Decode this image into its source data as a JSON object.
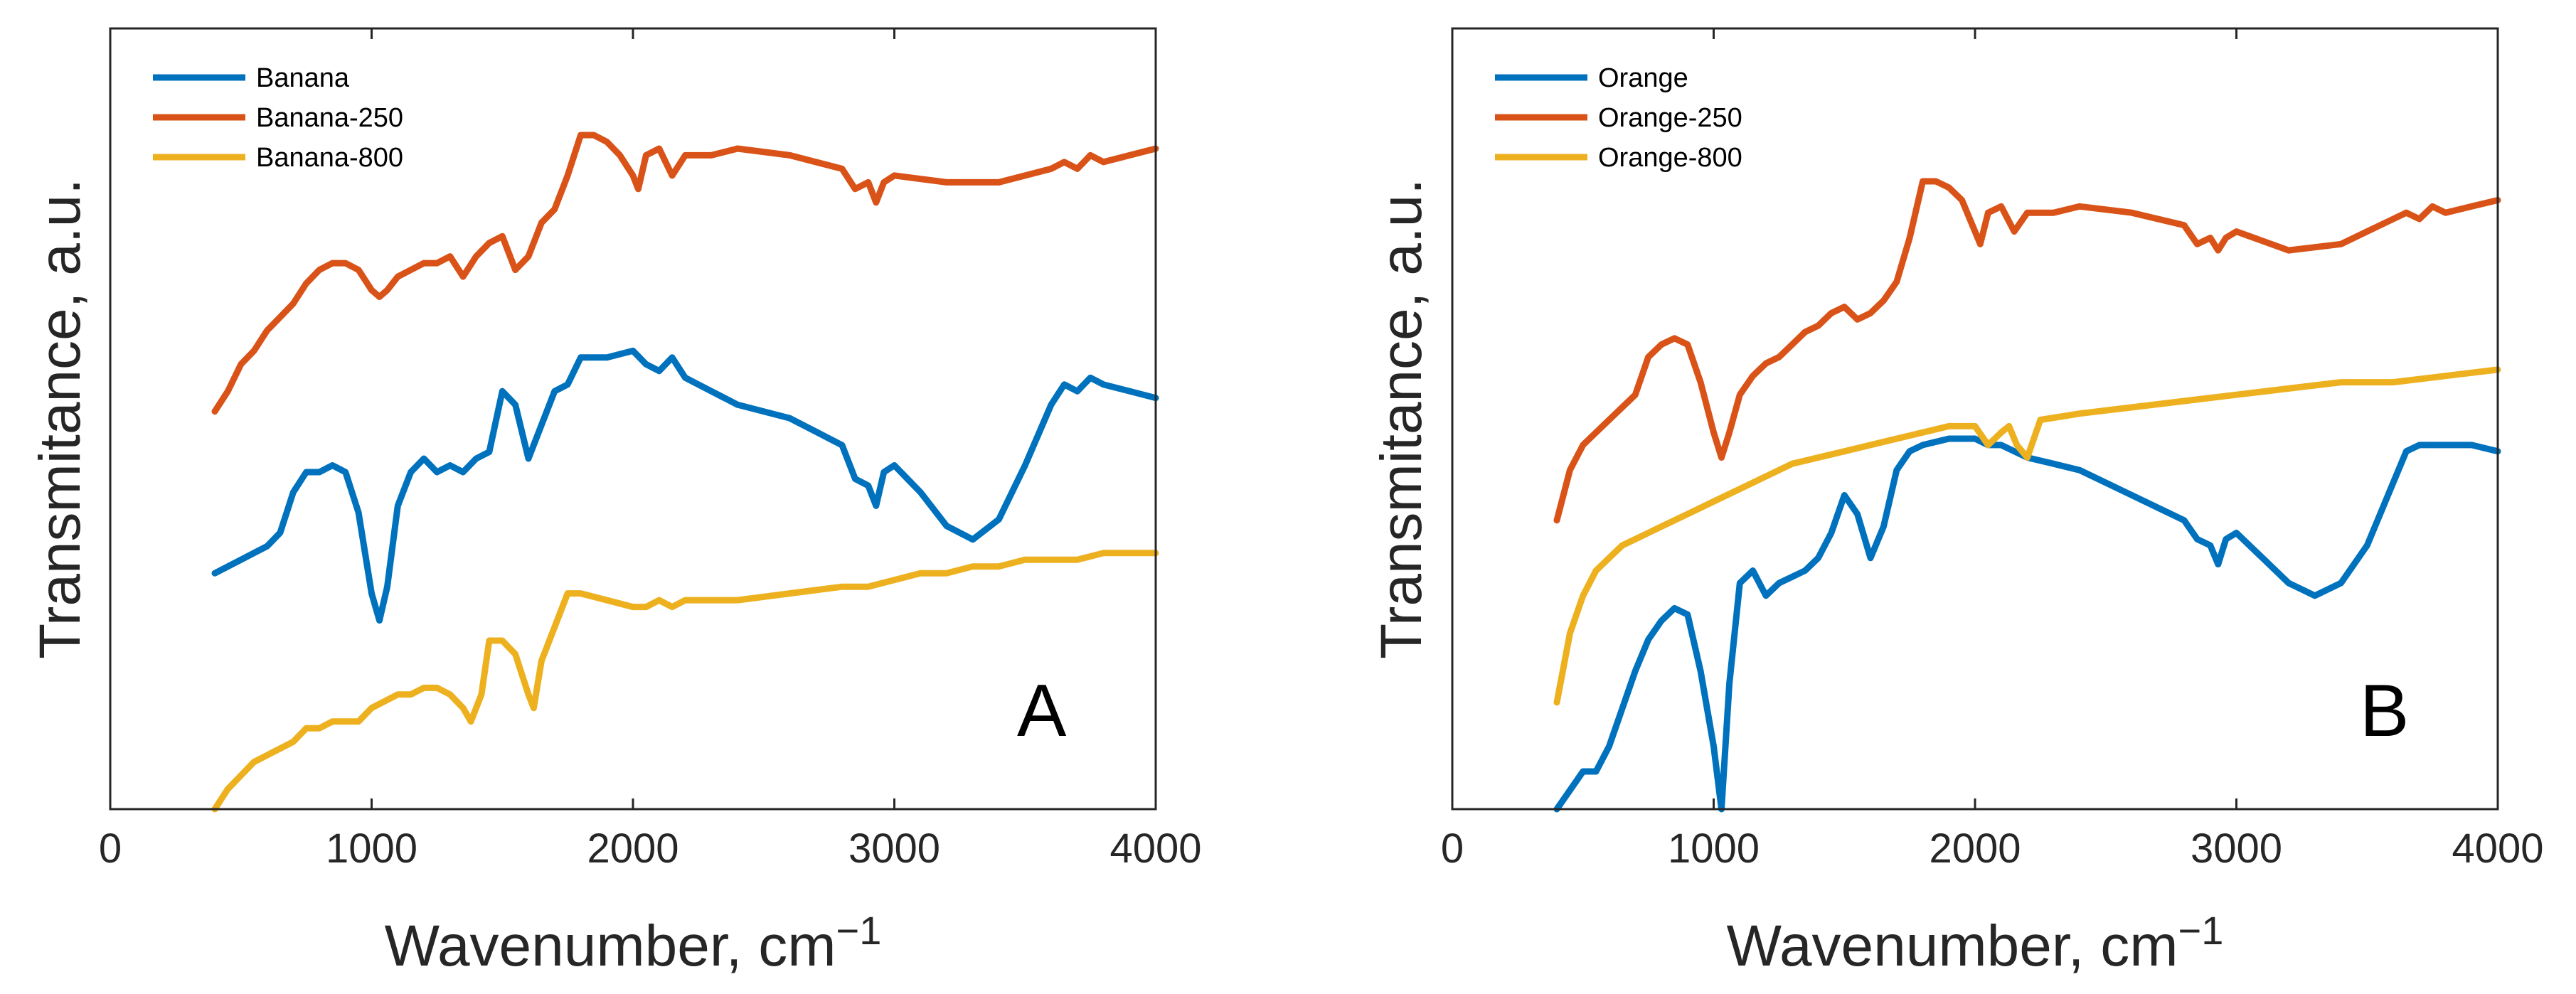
{
  "chart_data": [
    {
      "type": "line",
      "panel_letter": "A",
      "title": "",
      "xlabel": "Wavenumber, cm",
      "xlabel_superscript": "−1",
      "ylabel": "Transmitance, a.u.",
      "xlim": [
        0,
        4000
      ],
      "ylim": [
        0,
        100
      ],
      "xticks": [
        0,
        1000,
        2000,
        3000,
        4000
      ],
      "yticks": [],
      "grid": false,
      "legend_position": "top-left",
      "series": [
        {
          "name": "Banana",
          "color": "#0072BD",
          "x": [
            400,
            450,
            500,
            550,
            600,
            650,
            700,
            750,
            800,
            850,
            900,
            950,
            1000,
            1030,
            1060,
            1100,
            1150,
            1200,
            1250,
            1300,
            1350,
            1400,
            1450,
            1500,
            1550,
            1600,
            1650,
            1700,
            1750,
            1800,
            1900,
            2000,
            2050,
            2100,
            2150,
            2200,
            2300,
            2400,
            2600,
            2800,
            2850,
            2900,
            2930,
            2960,
            3000,
            3100,
            3200,
            3300,
            3400,
            3500,
            3600,
            3650,
            3700,
            3750,
            3800,
            3900,
            4000
          ],
          "y": [
            35,
            36,
            37,
            38,
            39,
            41,
            47,
            50,
            50,
            51,
            50,
            44,
            32,
            28,
            33,
            45,
            50,
            52,
            50,
            51,
            50,
            52,
            53,
            62,
            60,
            52,
            57,
            62,
            63,
            67,
            67,
            68,
            66,
            65,
            67,
            64,
            62,
            60,
            58,
            54,
            49,
            48,
            45,
            50,
            51,
            47,
            42,
            40,
            43,
            51,
            60,
            63,
            62,
            64,
            63,
            62,
            61
          ]
        },
        {
          "name": "Banana-250",
          "color": "#D95319",
          "x": [
            400,
            450,
            500,
            550,
            600,
            650,
            700,
            750,
            800,
            850,
            900,
            950,
            1000,
            1030,
            1060,
            1100,
            1150,
            1200,
            1250,
            1300,
            1350,
            1400,
            1450,
            1500,
            1550,
            1600,
            1650,
            1700,
            1750,
            1800,
            1850,
            1900,
            1950,
            2000,
            2020,
            2050,
            2100,
            2150,
            2200,
            2300,
            2400,
            2600,
            2800,
            2850,
            2900,
            2930,
            2960,
            3000,
            3200,
            3400,
            3500,
            3600,
            3650,
            3700,
            3750,
            3800,
            3900,
            4000
          ],
          "y": [
            59,
            62,
            66,
            68,
            71,
            73,
            75,
            78,
            80,
            81,
            81,
            80,
            77,
            76,
            77,
            79,
            80,
            81,
            81,
            82,
            79,
            82,
            84,
            85,
            80,
            82,
            87,
            89,
            94,
            100,
            100,
            99,
            97,
            94,
            92,
            97,
            98,
            94,
            97,
            97,
            98,
            97,
            95,
            92,
            93,
            90,
            93,
            94,
            93,
            93,
            94,
            95,
            96,
            95,
            97,
            96,
            97,
            98
          ]
        },
        {
          "name": "Banana-800",
          "color": "#EDB120",
          "x": [
            400,
            450,
            500,
            550,
            600,
            650,
            700,
            750,
            800,
            850,
            900,
            950,
            1000,
            1050,
            1100,
            1150,
            1200,
            1250,
            1300,
            1350,
            1380,
            1420,
            1450,
            1500,
            1550,
            1600,
            1620,
            1650,
            1700,
            1750,
            1800,
            1900,
            2000,
            2050,
            2100,
            2150,
            2200,
            2300,
            2400,
            2600,
            2800,
            2900,
            3000,
            3100,
            3200,
            3300,
            3400,
            3500,
            3600,
            3700,
            3800,
            3900,
            4000
          ],
          "y": [
            0,
            3,
            5,
            7,
            8,
            9,
            10,
            12,
            12,
            13,
            13,
            13,
            15,
            16,
            17,
            17,
            18,
            18,
            17,
            15,
            13,
            17,
            25,
            25,
            23,
            17,
            15,
            22,
            27,
            32,
            32,
            31,
            30,
            30,
            31,
            30,
            31,
            31,
            31,
            32,
            33,
            33,
            34,
            35,
            35,
            36,
            36,
            37,
            37,
            37,
            38,
            38,
            38
          ]
        }
      ]
    },
    {
      "type": "line",
      "panel_letter": "B",
      "title": "",
      "xlabel": "Wavenumber, cm",
      "xlabel_superscript": "−1",
      "ylabel": "Transmitance, a.u.",
      "xlim": [
        0,
        4000
      ],
      "ylim": [
        0,
        100
      ],
      "xticks": [
        0,
        1000,
        2000,
        3000,
        4000
      ],
      "yticks": [],
      "grid": false,
      "legend_position": "top-left",
      "series": [
        {
          "name": "Orange",
          "color": "#0072BD",
          "x": [
            400,
            450,
            500,
            550,
            600,
            650,
            700,
            750,
            800,
            850,
            900,
            950,
            1000,
            1030,
            1060,
            1100,
            1150,
            1200,
            1250,
            1300,
            1350,
            1400,
            1450,
            1500,
            1550,
            1600,
            1650,
            1700,
            1750,
            1800,
            1900,
            2000,
            2050,
            2100,
            2150,
            2200,
            2300,
            2400,
            2600,
            2800,
            2850,
            2900,
            2930,
            2960,
            3000,
            3100,
            3200,
            3300,
            3400,
            3500,
            3600,
            3650,
            3700,
            3750,
            3800,
            3900,
            4000
          ],
          "y": [
            0,
            3,
            6,
            6,
            10,
            16,
            22,
            27,
            30,
            32,
            31,
            22,
            10,
            0,
            20,
            36,
            38,
            34,
            36,
            37,
            38,
            40,
            44,
            50,
            47,
            40,
            45,
            54,
            57,
            58,
            59,
            59,
            58,
            58,
            57,
            56,
            55,
            54,
            50,
            46,
            43,
            42,
            39,
            43,
            44,
            40,
            36,
            34,
            36,
            42,
            52,
            57,
            58,
            58,
            58,
            58,
            57
          ]
        },
        {
          "name": "Orange-250",
          "color": "#D95319",
          "x": [
            400,
            450,
            500,
            550,
            600,
            650,
            700,
            750,
            800,
            850,
            900,
            950,
            1000,
            1030,
            1060,
            1100,
            1150,
            1200,
            1250,
            1300,
            1350,
            1400,
            1450,
            1500,
            1550,
            1600,
            1650,
            1700,
            1750,
            1800,
            1850,
            1900,
            1950,
            2000,
            2020,
            2050,
            2100,
            2150,
            2200,
            2300,
            2400,
            2600,
            2800,
            2850,
            2900,
            2930,
            2960,
            3000,
            3200,
            3400,
            3500,
            3600,
            3650,
            3700,
            3750,
            3800,
            3900,
            4000
          ],
          "y": [
            46,
            54,
            58,
            60,
            62,
            64,
            66,
            72,
            74,
            75,
            74,
            68,
            60,
            56,
            60,
            66,
            69,
            71,
            72,
            74,
            76,
            77,
            79,
            80,
            78,
            79,
            81,
            84,
            91,
            100,
            100,
            99,
            97,
            92,
            90,
            95,
            96,
            92,
            95,
            95,
            96,
            95,
            93,
            90,
            91,
            89,
            91,
            92,
            89,
            90,
            92,
            94,
            95,
            94,
            96,
            95,
            96,
            97
          ]
        },
        {
          "name": "Orange-800",
          "color": "#EDB120",
          "x": [
            400,
            450,
            500,
            550,
            600,
            650,
            700,
            750,
            800,
            850,
            900,
            950,
            1000,
            1100,
            1200,
            1300,
            1400,
            1500,
            1600,
            1700,
            1800,
            1900,
            2000,
            2050,
            2100,
            2130,
            2160,
            2200,
            2250,
            2400,
            2600,
            2800,
            3000,
            3200,
            3400,
            3600,
            3800,
            4000
          ],
          "y": [
            17,
            28,
            34,
            38,
            40,
            42,
            43,
            44,
            45,
            46,
            47,
            48,
            49,
            51,
            53,
            55,
            56,
            57,
            58,
            59,
            60,
            61,
            61,
            58,
            60,
            61,
            58,
            56,
            62,
            63,
            64,
            65,
            66,
            67,
            68,
            68,
            69,
            70
          ]
        }
      ]
    }
  ]
}
